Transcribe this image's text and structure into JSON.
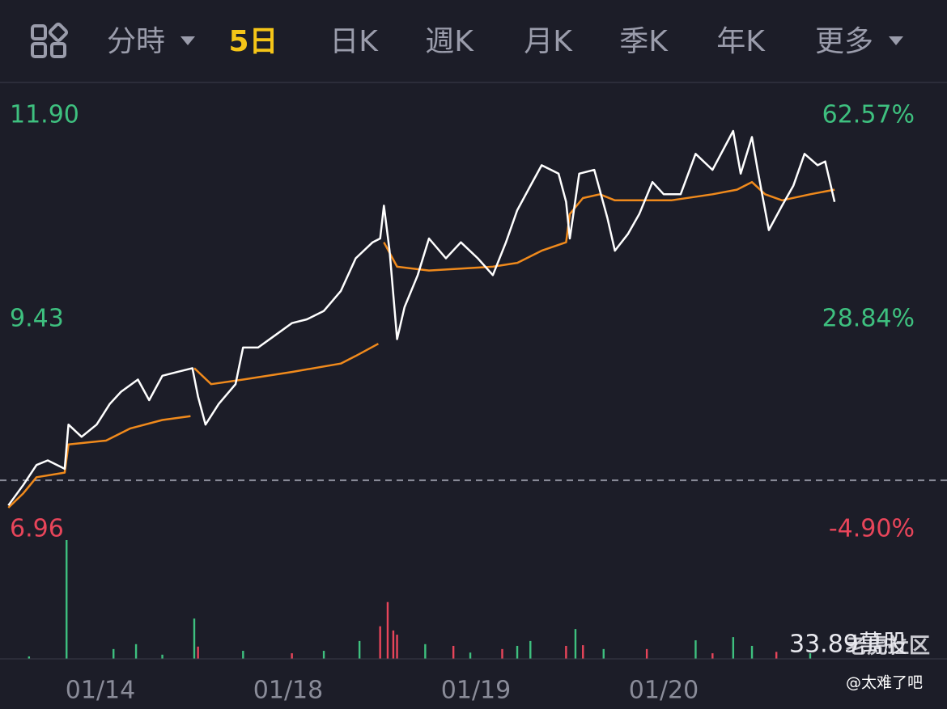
{
  "tabs": {
    "items": [
      "分時",
      "5日",
      "日K",
      "週K",
      "月K",
      "季K",
      "年K",
      "更多"
    ],
    "active": 1
  },
  "chart_data": {
    "type": "line",
    "xlim": [
      0,
      5
    ],
    "xticks": [
      {
        "value": 0.5,
        "label": "01/14"
      },
      {
        "value": 1.5,
        "label": "01/18"
      },
      {
        "value": 2.5,
        "label": "01/19"
      },
      {
        "value": 3.5,
        "label": "01/20"
      }
    ],
    "ylim": [
      6.96,
      11.9
    ],
    "yticks": [
      {
        "value": 11.9,
        "label": "11.90"
      },
      9.43,
      6.96
    ],
    "y2lim": [
      -4.9,
      62.57
    ],
    "y2ticks": [
      {
        "value": 62.57,
        "label": "62.57%"
      },
      {
        "value": 28.84,
        "label": "28.84%"
      },
      {
        "value": -4.9,
        "label": "-4.90%"
      }
    ],
    "baseline_y2": 0,
    "up_color": "#3ec07f",
    "down_color": "#e8455a",
    "price": {
      "color": "#ffffff",
      "x": [
        0.01,
        0.09,
        0.16,
        0.22,
        0.31,
        0.33,
        0.4,
        0.48,
        0.55,
        0.61,
        0.7,
        0.76,
        0.83,
        0.91,
        0.99,
        1.02,
        1.06,
        1.13,
        1.22,
        1.26,
        1.34,
        1.43,
        1.52,
        1.6,
        1.69,
        1.78,
        1.86,
        1.95,
        1.99,
        2.01,
        2.04,
        2.08,
        2.12,
        2.19,
        2.25,
        2.34,
        2.42,
        2.51,
        2.59,
        2.66,
        2.72,
        2.79,
        2.85,
        2.94,
        2.98,
        3.0,
        3.05,
        3.13,
        3.2,
        3.24,
        3.31,
        3.37,
        3.44,
        3.5,
        3.59,
        3.67,
        3.76,
        3.87,
        3.91,
        3.97,
        4.0,
        4.06,
        4.13,
        4.19,
        4.25,
        4.32,
        4.36,
        4.41
      ],
      "values": [
        6.99,
        7.26,
        7.52,
        7.58,
        7.47,
        8.05,
        7.89,
        8.05,
        8.32,
        8.48,
        8.64,
        8.37,
        8.69,
        8.74,
        8.79,
        8.42,
        8.05,
        8.32,
        8.58,
        9.06,
        9.06,
        9.22,
        9.38,
        9.43,
        9.54,
        9.8,
        10.23,
        10.44,
        10.49,
        10.92,
        10.33,
        9.17,
        9.59,
        10.01,
        10.49,
        10.23,
        10.44,
        10.23,
        10.01,
        10.44,
        10.86,
        11.18,
        11.45,
        11.34,
        10.97,
        10.49,
        11.34,
        11.39,
        10.76,
        10.33,
        10.55,
        10.81,
        11.23,
        11.07,
        11.07,
        11.6,
        11.39,
        11.9,
        11.34,
        11.82,
        11.39,
        10.6,
        10.92,
        11.18,
        11.6,
        11.45,
        11.5,
        10.97
      ]
    },
    "average": {
      "color": "#f08a1c",
      "x": [
        0.01,
        0.09,
        0.16,
        0.31,
        0.33,
        0.53,
        0.66,
        0.83,
        0.98,
        null,
        1.0,
        1.09,
        1.26,
        1.52,
        1.78,
        1.86,
        1.98,
        null,
        2.01,
        2.08,
        2.25,
        2.59,
        2.72,
        2.85,
        2.98,
        3.0,
        3.07,
        3.16,
        3.24,
        3.54,
        3.76,
        3.89,
        3.97,
        4.04,
        4.13,
        4.28,
        4.41
      ],
      "values": [
        6.96,
        7.15,
        7.36,
        7.42,
        7.79,
        7.84,
        8.0,
        8.11,
        8.16,
        null,
        8.79,
        8.58,
        8.64,
        8.74,
        8.85,
        8.95,
        9.11,
        null,
        10.44,
        10.12,
        10.07,
        10.12,
        10.17,
        10.33,
        10.44,
        10.81,
        11.02,
        11.07,
        10.99,
        10.99,
        11.07,
        11.13,
        11.23,
        11.07,
        10.99,
        11.07,
        11.13
      ]
    },
    "volume": {
      "ylim": [
        0,
        33.89
      ],
      "yticks": [
        {
          "value": 33.89,
          "label": "33.89萬股"
        }
      ],
      "x": [
        0.12,
        0.32,
        0.57,
        0.69,
        0.83,
        1.0,
        1.02,
        1.26,
        1.52,
        1.69,
        1.88,
        1.99,
        2.03,
        2.06,
        2.08,
        2.23,
        2.38,
        2.47,
        2.64,
        2.72,
        2.79,
        2.98,
        3.03,
        3.07,
        3.18,
        3.41,
        3.67,
        3.76,
        3.87,
        3.97,
        4.1,
        4.28
      ],
      "values": [
        0.7,
        33.89,
        2.8,
        4.2,
        1.2,
        11.5,
        3.5,
        2.3,
        1.6,
        2.3,
        5.1,
        9.3,
        16.2,
        8.1,
        6.9,
        4.2,
        3.7,
        1.8,
        2.8,
        3.7,
        5.1,
        3.7,
        8.5,
        3.9,
        2.8,
        2.8,
        5.3,
        1.6,
        6.2,
        3.7,
        2.0,
        1.6
      ],
      "up": [
        true,
        true,
        true,
        true,
        true,
        true,
        false,
        true,
        false,
        true,
        true,
        false,
        false,
        false,
        false,
        true,
        false,
        true,
        false,
        true,
        true,
        false,
        true,
        false,
        true,
        false,
        true,
        false,
        true,
        true,
        false,
        true
      ]
    }
  },
  "watermark": {
    "brand": "老虎社区",
    "user": "@太难了吧"
  }
}
